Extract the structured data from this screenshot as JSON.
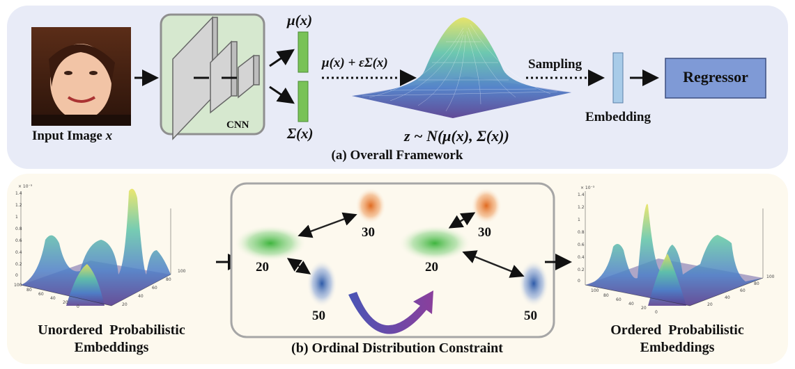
{
  "panel_a": {
    "caption": "(a) Overall Framework",
    "input_label": "Input Image ",
    "input_var": "x",
    "cnn_label": "CNN",
    "mu_label": "μ(x)",
    "sigma_label": "Σ(x)",
    "reparam_label": "μ(x) + εΣ(x)",
    "dist_label": "z ~ N(μ(x), Σ(x))",
    "sampling_label": "Sampling",
    "embedding_label": "Embedding",
    "regressor_label": "Regressor"
  },
  "panel_b": {
    "caption": "(b) Ordinal Distribution Constraint",
    "left_label_1": "Unordered  Probabilistic",
    "left_label_2": "Embeddings",
    "right_label_1": "Ordered  Probabilistic",
    "right_label_2": "Embeddings",
    "left_group": {
      "a": "30",
      "b": "20",
      "c": "50"
    },
    "right_group": {
      "a": "30",
      "b": "20",
      "c": "50"
    }
  },
  "colors": {
    "panel_a_bg": "#e8ebf7",
    "panel_b_bg": "#fdf9ee",
    "cnn_bg": "#d6e8cf",
    "regressor": "#7f9ad6",
    "mu_bar": "#79c257",
    "embed_bar": "#a8cbe8",
    "orange": "#e8823a",
    "green": "#58c25a",
    "blue": "#3f6db8",
    "curved_arrow": "#6a4aa8"
  },
  "icons": [
    "face-photo",
    "surface-3d-gaussian",
    "surface-3d-multimodal"
  ]
}
